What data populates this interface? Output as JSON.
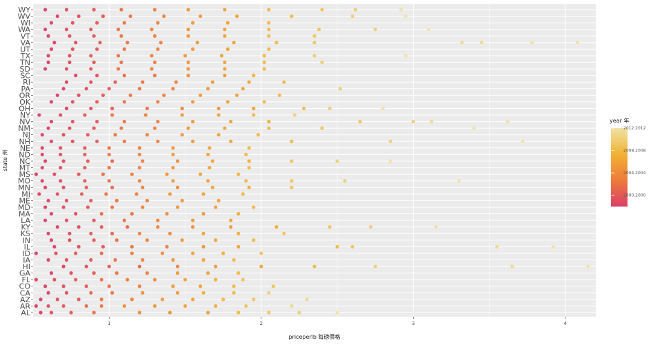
{
  "chart_data": {
    "type": "scatter",
    "title": "",
    "xlabel": "priceperlb 每磅價格",
    "ylabel": "state 州",
    "xlim": [
      0.5,
      4.2
    ],
    "x_ticks": [
      1,
      2,
      3,
      4
    ],
    "x_tick_labels": [
      "1",
      "2",
      "3",
      "4"
    ],
    "grid": true,
    "legend": {
      "position": "right",
      "title": "year 年",
      "labels": [
        "2012.2012",
        "2008.2008",
        "2004.2004",
        "2000.2000"
      ],
      "stops": [
        2012,
        2008,
        2004,
        2000
      ],
      "range": [
        1998,
        2012
      ],
      "colors": [
        "#da3f68",
        "#ed7b3c",
        "#f1b233",
        "#efe3a6"
      ]
    },
    "y_tick_labels": [
      "AL",
      "AR",
      "AZ",
      "CA",
      "CO",
      "FL",
      "GA",
      "HI",
      "IA",
      "ID",
      "IL",
      "IN",
      "KS",
      "KY",
      "LA",
      "MA",
      "MD",
      "ME",
      "MI",
      "MN",
      "MO",
      "MS",
      "MT",
      "NC",
      "ND",
      "NE",
      "NH",
      "NJ",
      "NM",
      "NV",
      "NY",
      "OH",
      "OK",
      "OR",
      "PA",
      "RI",
      "SC",
      "SD",
      "TN",
      "TX",
      "UT",
      "VA",
      "VT",
      "WA",
      "WI",
      "WV",
      "WY"
    ],
    "series": [
      {
        "state": "AL",
        "x": [
          0.55,
          0.62,
          0.75,
          0.9,
          1.2,
          1.4,
          1.65,
          1.85,
          2.05,
          2.25,
          2.5
        ],
        "year": [
          1998,
          1999,
          2000,
          2002,
          2004,
          2005,
          2006,
          2008,
          2009,
          2010,
          2012
        ]
      },
      {
        "state": "AR",
        "x": [
          0.52,
          0.6,
          0.7,
          0.85,
          0.95,
          1.1,
          1.3,
          1.5,
          1.7,
          1.9,
          2.2
        ],
        "year": [
          1998,
          1999,
          2000,
          2001,
          2002,
          2004,
          2005,
          2006,
          2007,
          2009,
          2011
        ]
      },
      {
        "state": "AZ",
        "x": [
          0.55,
          0.66,
          0.8,
          0.95,
          1.15,
          1.35,
          1.55,
          1.75,
          1.95,
          2.3
        ],
        "year": [
          1998,
          1999,
          2000,
          2002,
          2003,
          2005,
          2006,
          2008,
          2009,
          2011
        ]
      },
      {
        "state": "CA",
        "x": [
          0.6,
          0.72,
          0.88,
          1.02,
          1.22,
          1.45,
          1.62,
          1.82,
          2.05
        ],
        "year": [
          1998,
          1999,
          2001,
          2002,
          2004,
          2005,
          2007,
          2008,
          2010
        ]
      },
      {
        "state": "CO",
        "x": [
          0.58,
          0.7,
          0.85,
          1.0,
          1.2,
          1.42,
          1.6,
          1.82,
          2.08
        ],
        "year": [
          1998,
          1999,
          2000,
          2002,
          2003,
          2005,
          2006,
          2008,
          2009
        ]
      },
      {
        "state": "FL",
        "x": [
          0.52,
          0.64,
          0.78,
          0.95,
          1.12,
          1.3,
          1.5,
          1.7,
          1.88
        ],
        "year": [
          1998,
          1999,
          2000,
          2002,
          2003,
          2004,
          2006,
          2007,
          2009
        ]
      },
      {
        "state": "GA",
        "x": [
          0.62,
          0.75,
          0.9,
          1.05,
          1.25,
          1.45,
          1.65,
          1.85
        ],
        "year": [
          1998,
          1999,
          2000,
          2002,
          2003,
          2005,
          2006,
          2008
        ]
      },
      {
        "state": "HI",
        "x": [
          0.7,
          0.85,
          1.0,
          1.2,
          1.45,
          1.7,
          2.0,
          2.35,
          2.75,
          3.65,
          4.15
        ],
        "year": [
          1998,
          1999,
          2000,
          2001,
          2003,
          2005,
          2006,
          2008,
          2010,
          2011,
          2012
        ]
      },
      {
        "state": "IA",
        "x": [
          0.6,
          0.72,
          0.88,
          1.04,
          1.22,
          1.42,
          1.62,
          1.82
        ],
        "year": [
          1998,
          1999,
          2000,
          2002,
          2003,
          2005,
          2006,
          2008
        ]
      },
      {
        "state": "ID",
        "x": [
          0.52,
          0.65,
          0.78,
          0.95,
          1.15,
          1.35,
          1.55,
          1.75,
          2.0
        ],
        "year": [
          1998,
          1999,
          2000,
          2001,
          2003,
          2004,
          2006,
          2007,
          2009
        ]
      },
      {
        "state": "IL",
        "x": [
          0.64,
          0.8,
          0.96,
          1.15,
          1.38,
          1.62,
          1.85,
          2.5,
          2.6,
          3.55,
          3.92
        ],
        "year": [
          1998,
          1999,
          2000,
          2002,
          2003,
          2005,
          2006,
          2008,
          2009,
          2011,
          2012
        ]
      },
      {
        "state": "IN",
        "x": [
          0.62,
          0.74,
          0.9,
          1.05,
          1.25,
          1.48,
          1.7,
          1.95
        ],
        "year": [
          1998,
          1999,
          2000,
          2002,
          2003,
          2005,
          2006,
          2008
        ]
      },
      {
        "state": "KS",
        "x": [
          0.6,
          0.74,
          0.88,
          1.02,
          1.2,
          1.4,
          1.62,
          1.85,
          2.15
        ],
        "year": [
          1998,
          1999,
          2000,
          2001,
          2003,
          2004,
          2006,
          2007,
          2009
        ]
      },
      {
        "state": "KY",
        "x": [
          0.66,
          0.8,
          0.95,
          1.12,
          1.32,
          1.55,
          1.8,
          2.1,
          2.45,
          2.72,
          3.15
        ],
        "year": [
          1998,
          1999,
          2000,
          2001,
          2003,
          2004,
          2005,
          2007,
          2009,
          2010,
          2012
        ]
      },
      {
        "state": "LA",
        "x": [
          0.58,
          0.72,
          0.9,
          1.1,
          1.32,
          1.55,
          1.8
        ],
        "year": [
          1998,
          1999,
          2000,
          2002,
          2003,
          2005,
          2006
        ]
      },
      {
        "state": "MA",
        "x": [
          0.62,
          0.78,
          0.95,
          1.15,
          1.38,
          1.62,
          1.85
        ],
        "year": [
          1998,
          1999,
          2001,
          2002,
          2004,
          2005,
          2007
        ]
      },
      {
        "state": "MD",
        "x": [
          0.58,
          0.7,
          0.86,
          1.02,
          1.22,
          1.45,
          1.7,
          1.95
        ],
        "year": [
          1998,
          1999,
          2000,
          2002,
          2003,
          2005,
          2006,
          2008
        ]
      },
      {
        "state": "ME",
        "x": [
          0.6,
          0.72,
          0.88,
          1.05,
          1.25,
          1.48,
          1.72
        ],
        "year": [
          1998,
          1999,
          2000,
          2002,
          2003,
          2005,
          2006
        ]
      },
      {
        "state": "MI",
        "x": [
          0.54,
          0.66,
          0.82,
          0.98,
          1.18,
          1.4,
          1.62,
          1.88
        ],
        "year": [
          1998,
          1999,
          2000,
          2002,
          2003,
          2005,
          2006,
          2008
        ]
      },
      {
        "state": "MN",
        "x": [
          0.58,
          0.7,
          0.85,
          1.02,
          1.22,
          1.45,
          1.68,
          1.92,
          2.2
        ],
        "year": [
          1998,
          1999,
          2000,
          2001,
          2003,
          2004,
          2006,
          2007,
          2009
        ]
      },
      {
        "state": "MO",
        "x": [
          0.56,
          0.68,
          0.84,
          1.0,
          1.2,
          1.42,
          1.65,
          1.9,
          2.2,
          2.55,
          3.3
        ],
        "year": [
          1998,
          1999,
          2000,
          2002,
          2003,
          2005,
          2006,
          2008,
          2009,
          2010,
          2012
        ]
      },
      {
        "state": "MS",
        "x": [
          0.52,
          0.64,
          0.8,
          0.96,
          1.15,
          1.38,
          1.6,
          1.85
        ],
        "year": [
          1998,
          1999,
          2000,
          2002,
          2003,
          2005,
          2006,
          2008
        ]
      },
      {
        "state": "MT",
        "x": [
          0.56,
          0.68,
          0.84,
          1.0,
          1.2,
          1.42,
          1.66,
          1.92
        ],
        "year": [
          1998,
          1999,
          2000,
          2002,
          2003,
          2005,
          2006,
          2008
        ]
      },
      {
        "state": "NC",
        "x": [
          0.58,
          0.7,
          0.86,
          1.02,
          1.22,
          1.45,
          1.68,
          1.92,
          2.2,
          2.5,
          2.85
        ],
        "year": [
          1998,
          1999,
          2000,
          2001,
          2003,
          2004,
          2006,
          2007,
          2009,
          2010,
          2012
        ]
      },
      {
        "state": "ND",
        "x": [
          0.56,
          0.68,
          0.84,
          1.0,
          1.2,
          1.42,
          1.65,
          1.9
        ],
        "year": [
          1998,
          1999,
          2000,
          2002,
          2003,
          2005,
          2006,
          2008
        ]
      },
      {
        "state": "NE",
        "x": [
          0.56,
          0.68,
          0.84,
          1.0,
          1.2,
          1.42,
          1.66,
          1.92
        ],
        "year": [
          1998,
          1999,
          2000,
          2002,
          2003,
          2005,
          2006,
          2008
        ]
      },
      {
        "state": "NH",
        "x": [
          0.62,
          0.76,
          0.92,
          1.1,
          1.32,
          1.55,
          1.8,
          2.2,
          2.85,
          3.72
        ],
        "year": [
          1998,
          1999,
          2000,
          2002,
          2003,
          2005,
          2006,
          2008,
          2010,
          2012
        ]
      },
      {
        "state": "NJ",
        "x": [
          0.56,
          0.7,
          0.86,
          1.04,
          1.25,
          1.48,
          1.72,
          1.98
        ],
        "year": [
          1998,
          1999,
          2000,
          2002,
          2003,
          2005,
          2006,
          2008
        ]
      },
      {
        "state": "NM",
        "x": [
          0.6,
          0.74,
          0.9,
          1.08,
          1.3,
          1.52,
          1.76,
          2.05,
          2.4,
          3.4
        ],
        "year": [
          1998,
          1999,
          2000,
          2002,
          2003,
          2005,
          2006,
          2008,
          2009,
          2012
        ]
      },
      {
        "state": "NV",
        "x": [
          0.62,
          0.76,
          0.92,
          1.1,
          1.32,
          1.55,
          1.8,
          2.05,
          2.65,
          3.0,
          3.12,
          3.62
        ],
        "year": [
          1998,
          1999,
          2000,
          2002,
          2003,
          2005,
          2006,
          2007,
          2009,
          2010,
          2011,
          2012
        ]
      },
      {
        "state": "NY",
        "x": [
          0.54,
          0.68,
          0.84,
          1.02,
          1.24,
          1.48,
          1.72,
          1.95,
          2.22
        ],
        "year": [
          1998,
          1999,
          2000,
          2002,
          2003,
          2005,
          2006,
          2008,
          2010
        ]
      },
      {
        "state": "OH",
        "x": [
          0.72,
          0.88,
          1.02,
          1.25,
          1.48,
          1.72,
          1.95,
          2.28,
          2.45,
          2.8
        ],
        "year": [
          1998,
          1999,
          2000,
          2002,
          2003,
          2005,
          2006,
          2008,
          2010,
          2012
        ]
      },
      {
        "state": "OK",
        "x": [
          0.62,
          0.76,
          0.92,
          1.1,
          1.32,
          1.55,
          1.78,
          2.02
        ],
        "year": [
          1998,
          1999,
          2000,
          2002,
          2003,
          2005,
          2006,
          2008
        ]
      },
      {
        "state": "OR",
        "x": [
          0.66,
          0.8,
          0.96,
          1.14,
          1.36,
          1.6,
          1.84,
          2.12
        ],
        "year": [
          1998,
          1999,
          2000,
          2002,
          2003,
          2005,
          2006,
          2008
        ]
      },
      {
        "state": "PA",
        "x": [
          0.7,
          0.85,
          1.0,
          1.2,
          1.42,
          1.65,
          1.88,
          2.52
        ],
        "year": [
          1998,
          1999,
          2000,
          2002,
          2003,
          2005,
          2006,
          2010
        ]
      },
      {
        "state": "RI",
        "x": [
          0.72,
          0.88,
          1.04,
          1.22,
          1.44,
          1.68,
          1.92,
          2.15
        ],
        "year": [
          1998,
          1999,
          2000,
          2002,
          2003,
          2005,
          2006,
          2008
        ]
      },
      {
        "state": "SC",
        "x": [
          0.78,
          0.92,
          1.1,
          1.3,
          1.52,
          1.76,
          1.95
        ],
        "year": [
          1998,
          1999,
          2001,
          2002,
          2004,
          2005,
          2007
        ]
      },
      {
        "state": "SD",
        "x": [
          0.58,
          0.72,
          0.88,
          1.06,
          1.28,
          1.52,
          1.76,
          2.02
        ],
        "year": [
          1998,
          1999,
          2000,
          2002,
          2003,
          2005,
          2006,
          2008
        ]
      },
      {
        "state": "TN",
        "x": [
          0.6,
          0.74,
          0.9,
          1.08,
          1.3,
          1.52,
          1.76,
          2.02,
          2.4
        ],
        "year": [
          1998,
          1999,
          2000,
          2002,
          2003,
          2005,
          2006,
          2008,
          2010
        ]
      },
      {
        "state": "TX",
        "x": [
          0.6,
          0.74,
          0.88,
          1.06,
          1.28,
          1.5,
          1.74,
          2.02,
          2.35,
          2.95
        ],
        "year": [
          1998,
          1999,
          2000,
          2002,
          2003,
          2005,
          2006,
          2008,
          2010,
          2012
        ]
      },
      {
        "state": "UT",
        "x": [
          0.62,
          0.76,
          0.92,
          1.1,
          1.32,
          1.55,
          1.78,
          2.05
        ],
        "year": [
          1998,
          1999,
          2000,
          2002,
          2003,
          2005,
          2006,
          2008
        ]
      },
      {
        "state": "VA",
        "x": [
          0.64,
          0.78,
          0.94,
          1.12,
          1.34,
          1.58,
          1.82,
          2.1,
          2.35,
          3.32,
          3.45,
          3.78,
          4.08
        ],
        "year": [
          1998,
          1999,
          2000,
          2002,
          2003,
          2005,
          2006,
          2008,
          2009,
          2011,
          2011,
          2012,
          2012
        ]
      },
      {
        "state": "VT",
        "x": [
          0.6,
          0.74,
          0.9,
          1.08,
          1.3,
          1.52,
          1.76,
          2.05,
          2.35
        ],
        "year": [
          1998,
          1999,
          2000,
          2002,
          2003,
          2005,
          2006,
          2008,
          2009
        ]
      },
      {
        "state": "WA",
        "x": [
          0.58,
          0.72,
          0.88,
          1.06,
          1.28,
          1.52,
          1.76,
          2.05,
          2.38,
          2.75,
          3.1
        ],
        "year": [
          1998,
          1999,
          2000,
          2002,
          2003,
          2005,
          2006,
          2008,
          2009,
          2010,
          2012
        ]
      },
      {
        "state": "WI",
        "x": [
          0.62,
          0.76,
          0.92,
          1.1,
          1.32,
          1.55,
          1.78,
          2.05
        ],
        "year": [
          1998,
          1999,
          2000,
          2002,
          2003,
          2005,
          2006,
          2008
        ]
      },
      {
        "state": "WV",
        "x": [
          0.66,
          0.8,
          0.96,
          1.14,
          1.36,
          1.6,
          1.84,
          2.2,
          2.6,
          2.95
        ],
        "year": [
          1998,
          1999,
          2000,
          2002,
          2003,
          2005,
          2006,
          2008,
          2010,
          2012
        ]
      },
      {
        "state": "WY",
        "x": [
          0.58,
          0.72,
          0.9,
          1.08,
          1.3,
          1.52,
          1.76,
          2.05,
          2.4,
          2.62,
          2.92
        ],
        "year": [
          1998,
          1999,
          2000,
          2002,
          2003,
          2005,
          2006,
          2008,
          2009,
          2010,
          2012
        ]
      }
    ]
  }
}
